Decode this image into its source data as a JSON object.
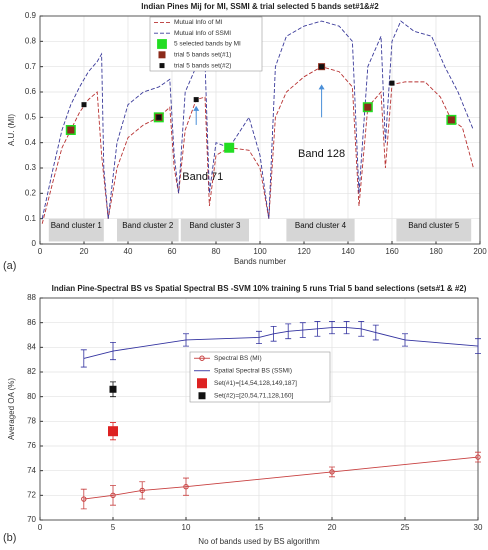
{
  "chart_data": [
    {
      "type": "line",
      "title": "Indian Pines Mij for MI, SSMI & trial selected 5 bands set#1&#2",
      "panel_label": "(a)",
      "x_label": "Bands number",
      "y_label": "A.U. (MI)",
      "xlim": [
        0,
        200
      ],
      "xticks": [
        0,
        20,
        40,
        60,
        80,
        100,
        120,
        140,
        160,
        180,
        200
      ],
      "ylim": [
        0,
        0.9
      ],
      "yticks": [
        0,
        0.1,
        0.2,
        0.3,
        0.4,
        0.5,
        0.6,
        0.7,
        0.8,
        0.9
      ],
      "grid": true,
      "series": [
        {
          "name": "Mutual Info of MI",
          "color": "#b83232",
          "style": "dashed",
          "x": [
            1,
            6,
            10,
            14,
            18,
            22,
            26,
            28,
            31,
            35,
            40,
            47,
            54,
            59,
            61,
            63,
            66,
            71,
            75,
            77,
            80,
            86,
            95,
            100,
            104,
            107,
            112,
            120,
            128,
            136,
            142,
            145,
            149,
            155,
            157,
            160,
            166,
            175,
            182,
            187,
            192,
            197
          ],
          "values": [
            0.08,
            0.25,
            0.38,
            0.45,
            0.52,
            0.57,
            0.6,
            0.35,
            0.1,
            0.3,
            0.42,
            0.47,
            0.5,
            0.54,
            0.3,
            0.2,
            0.45,
            0.57,
            0.58,
            0.15,
            0.35,
            0.38,
            0.37,
            0.3,
            0.1,
            0.5,
            0.6,
            0.66,
            0.7,
            0.68,
            0.62,
            0.15,
            0.54,
            0.6,
            0.3,
            0.63,
            0.64,
            0.64,
            0.58,
            0.49,
            0.46,
            0.3
          ]
        },
        {
          "name": "Mutual Info of SSMI",
          "color": "#3a3a9a",
          "style": "dashed",
          "x": [
            1,
            6,
            10,
            14,
            18,
            22,
            26,
            28,
            29,
            31,
            35,
            40,
            47,
            54,
            59,
            61,
            63,
            66,
            71,
            75,
            77,
            80,
            86,
            95,
            100,
            104,
            107,
            112,
            120,
            128,
            136,
            142,
            145,
            149,
            155,
            157,
            160,
            164,
            170,
            178,
            184,
            190,
            197
          ],
          "values": [
            0.1,
            0.3,
            0.45,
            0.55,
            0.62,
            0.68,
            0.72,
            0.75,
            0.3,
            0.1,
            0.4,
            0.55,
            0.6,
            0.62,
            0.65,
            0.35,
            0.2,
            0.6,
            0.7,
            0.72,
            0.2,
            0.4,
            0.38,
            0.5,
            0.35,
            0.1,
            0.7,
            0.82,
            0.86,
            0.88,
            0.86,
            0.8,
            0.2,
            0.7,
            0.82,
            0.4,
            0.8,
            0.88,
            0.84,
            0.82,
            0.7,
            0.6,
            0.45
          ]
        },
        {
          "name": "5 selected bands by MI",
          "color": "#22dd22",
          "style": "marker",
          "x": [
            14,
            54,
            86,
            149,
            187
          ],
          "values": [
            0.45,
            0.5,
            0.38,
            0.54,
            0.49
          ]
        },
        {
          "name": "trial 5 bands set(#1)",
          "color": "#8b2a1a",
          "style": "marker-small",
          "x": [
            14,
            54,
            128,
            149,
            187
          ],
          "values": [
            0.45,
            0.5,
            0.7,
            0.54,
            0.49
          ]
        },
        {
          "name": "trial 5 bands set(#2)",
          "color": "#111111",
          "style": "marker-tiny",
          "x": [
            20,
            54,
            71,
            128,
            160
          ],
          "values": [
            0.55,
            0.5,
            0.57,
            0.7,
            0.635
          ]
        }
      ],
      "annotations": [
        "Band 71",
        "Band 128"
      ],
      "cluster_labels": [
        "Band cluster 1",
        "Band cluster 2",
        "Band cluster 3",
        "Band cluster 4",
        "Band cluster 5"
      ]
    },
    {
      "type": "line",
      "title": "Indian Pine-Spectral BS vs Spatial Spectral BS -SVM 10% training 5 runs Trial 5 band selections (sets#1 & #2)",
      "panel_label": "(b)",
      "x_label": "No of bands used by BS algorithm",
      "y_label": "Averaged OA (%)",
      "xlim": [
        0,
        30
      ],
      "xticks": [
        0,
        5,
        10,
        15,
        20,
        25,
        30
      ],
      "ylim": [
        70,
        88
      ],
      "yticks": [
        70,
        72,
        74,
        76,
        78,
        80,
        82,
        84,
        86,
        88
      ],
      "grid": true,
      "series": [
        {
          "name": "Spectral BS (MI)",
          "color": "#c84040",
          "style": "solid-circle",
          "x": [
            3,
            5,
            7,
            10,
            20,
            30
          ],
          "values": [
            71.7,
            72.0,
            72.4,
            72.7,
            73.9,
            75.1
          ],
          "errors": [
            0.8,
            0.8,
            0.7,
            0.7,
            0.4,
            0.4
          ]
        },
        {
          "name": "Spatial Spectral BS (SSMI)",
          "color": "#3333a0",
          "style": "solid",
          "x": [
            3,
            5,
            10,
            15,
            16,
            17,
            18,
            19,
            20,
            21,
            22,
            23,
            25,
            30
          ],
          "values": [
            83.1,
            83.7,
            84.6,
            84.8,
            85.1,
            85.3,
            85.4,
            85.5,
            85.6,
            85.6,
            85.5,
            85.2,
            84.6,
            84.1
          ],
          "errors": [
            0.7,
            0.7,
            0.5,
            0.5,
            0.6,
            0.6,
            0.6,
            0.6,
            0.5,
            0.5,
            0.6,
            0.6,
            0.5,
            0.6
          ]
        },
        {
          "name": "Set(#1)=[14,54,128,149,187]",
          "color": "#dd2222",
          "style": "marker",
          "x": [
            5
          ],
          "values": [
            77.2
          ],
          "errors": [
            0.7
          ]
        },
        {
          "name": "Set(#2)=[20,54,71,128,160]",
          "color": "#111111",
          "style": "marker-small",
          "x": [
            5
          ],
          "values": [
            80.6
          ],
          "errors": [
            0.6
          ]
        }
      ]
    }
  ]
}
